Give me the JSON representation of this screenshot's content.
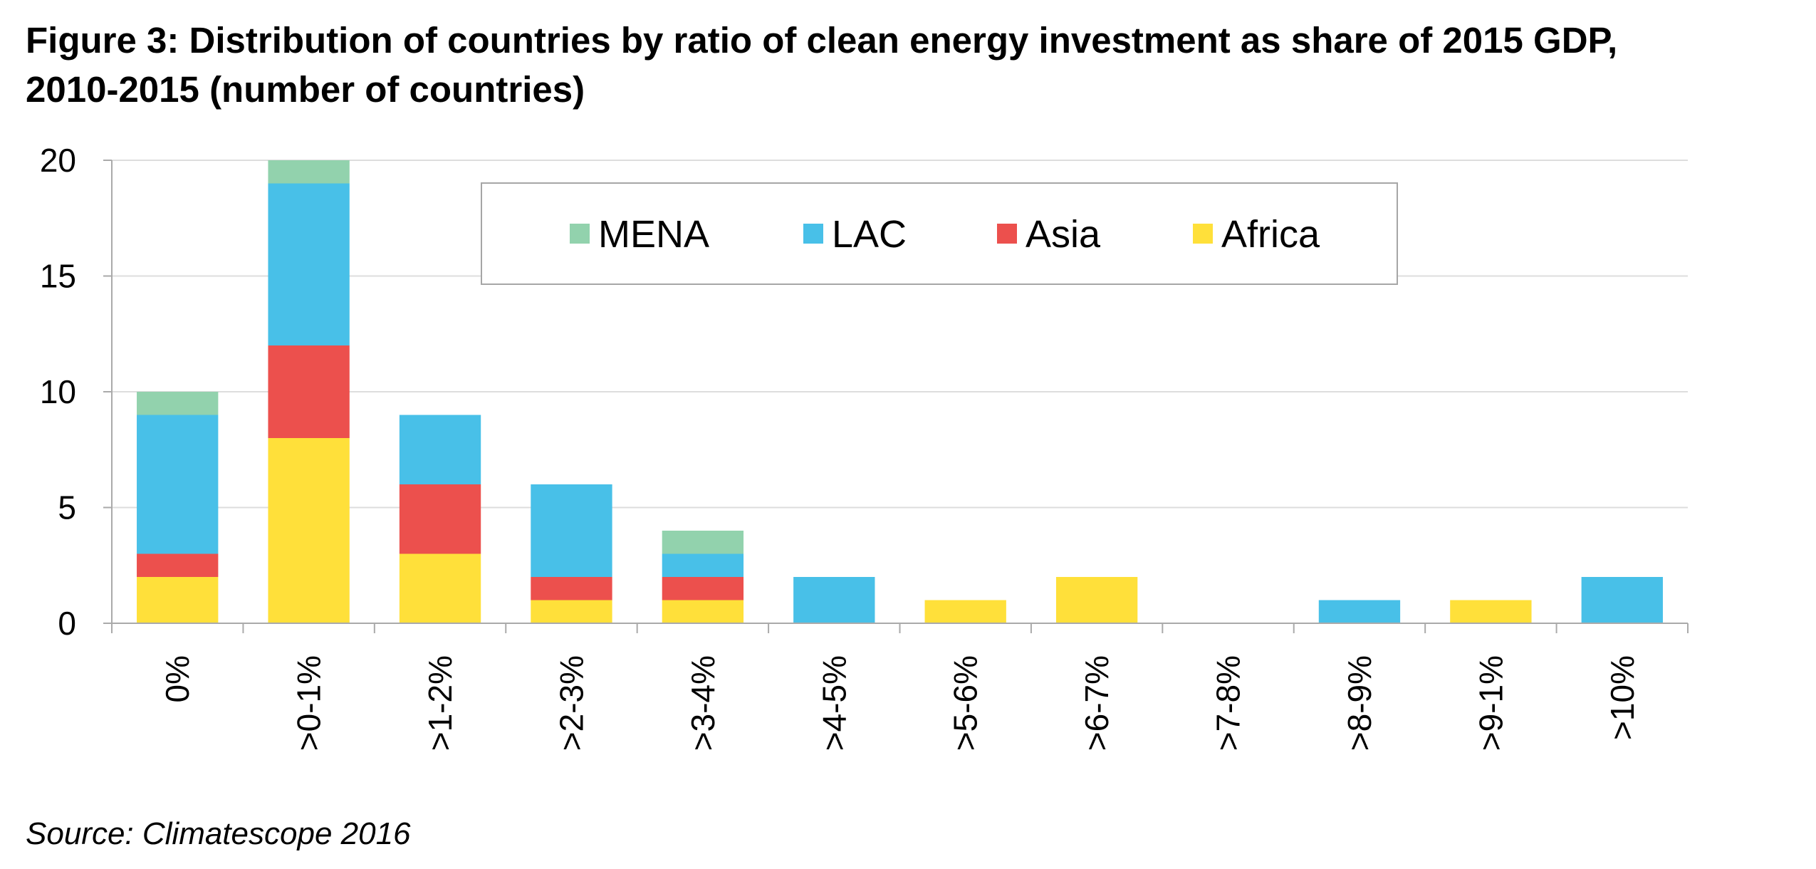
{
  "title_line1": "Figure 3: Distribution of countries by ratio of clean energy investment as share of 2015 GDP,",
  "title_line2": "2010-2015 (number of countries)",
  "source": "Source: Climatescope 2016",
  "chart_data": {
    "type": "bar",
    "stacked": true,
    "categories": [
      "0%",
      ">0-1%",
      ">1-2%",
      ">2-3%",
      ">3-4%",
      ">4-5%",
      ">5-6%",
      ">6-7%",
      ">7-8%",
      ">8-9%",
      ">9-1%",
      ">10%"
    ],
    "series": [
      {
        "name": "Africa",
        "color": "#FFE03A",
        "values": [
          2,
          8,
          3,
          1,
          1,
          0,
          1,
          2,
          0,
          0,
          1,
          0
        ]
      },
      {
        "name": "Asia",
        "color": "#EC504D",
        "values": [
          1,
          4,
          3,
          1,
          1,
          0,
          0,
          0,
          0,
          0,
          0,
          0
        ]
      },
      {
        "name": "LAC",
        "color": "#48C0E8",
        "values": [
          6,
          7,
          3,
          4,
          1,
          2,
          0,
          0,
          0,
          1,
          0,
          2
        ]
      },
      {
        "name": "MENA",
        "color": "#92D2AD",
        "values": [
          1,
          1,
          0,
          0,
          1,
          0,
          0,
          0,
          0,
          0,
          0,
          0
        ]
      }
    ],
    "legend_order": [
      "MENA",
      "LAC",
      "Asia",
      "Africa"
    ],
    "legend_position": "top-center",
    "ylim": [
      0,
      20
    ],
    "yticks": [
      0,
      5,
      10,
      15,
      20
    ],
    "grid": true,
    "gridColor": "#DDDDDD",
    "axisColor": "#AAAAAA"
  }
}
